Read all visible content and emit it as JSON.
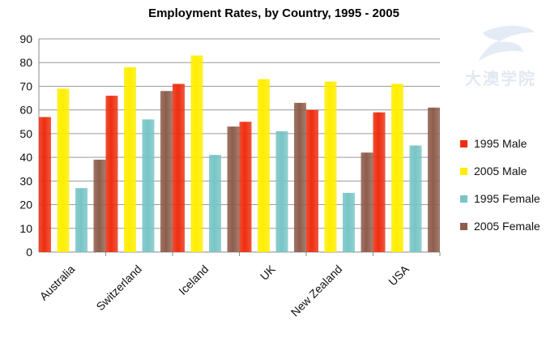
{
  "chart_data": {
    "type": "bar",
    "title": "Employment Rates, by Country, 1995  - 2005",
    "categories": [
      "Australia",
      "Switzerland",
      "Iceland",
      "UK",
      "New Zealand",
      "USA"
    ],
    "series": [
      {
        "name": "1995 Male",
        "color": "#ee2e10",
        "values": [
          57,
          66,
          71,
          55,
          60,
          59
        ]
      },
      {
        "name": "2005 Male",
        "color": "#ffee00",
        "values": [
          69,
          78,
          83,
          73,
          72,
          71
        ]
      },
      {
        "name": "1995 Female",
        "color": "#78c5c6",
        "values": [
          27,
          56,
          41,
          51,
          25,
          45
        ]
      },
      {
        "name": "2005 Female",
        "color": "#8e5d4c",
        "values": [
          39,
          68,
          53,
          63,
          42,
          61
        ]
      }
    ],
    "ylim": [
      0,
      90
    ],
    "yticks": [
      0,
      10,
      20,
      30,
      40,
      50,
      60,
      70,
      80,
      90
    ],
    "grid": true,
    "legend": "right",
    "xlabel": "",
    "ylabel": ""
  },
  "watermark": {
    "text": "大澳学院"
  }
}
